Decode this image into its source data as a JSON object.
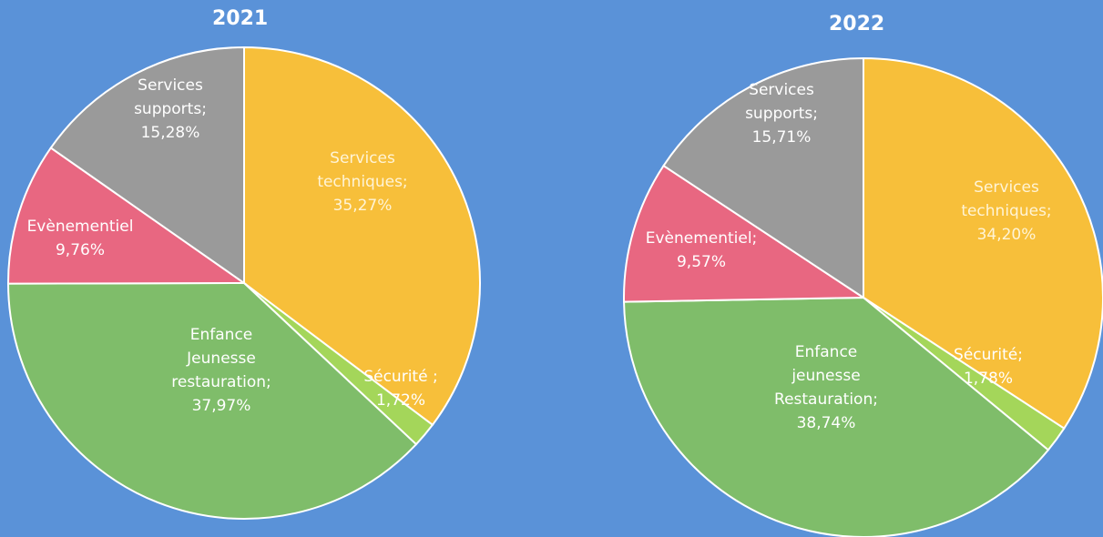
{
  "chart_data": [
    {
      "type": "pie",
      "title": "2021",
      "slices": [
        {
          "label_lines": [
            "Services",
            "techniques;",
            "35,27%"
          ],
          "value": 35.27,
          "color": "#f7bf3a",
          "text_color": "#fff4d6"
        },
        {
          "label_lines": [
            "Sécurité ;",
            "1,72%"
          ],
          "value": 1.72,
          "color": "#a4d65a",
          "text_color": "#ffffff"
        },
        {
          "label_lines": [
            "Enfance",
            "Jeunesse",
            "restauration;",
            "37,97%"
          ],
          "value": 37.97,
          "color": "#7fbd6a",
          "text_color": "#ffffff"
        },
        {
          "label_lines": [
            "Evènementiel",
            "9,76%"
          ],
          "value": 9.76,
          "color": "#e86781",
          "text_color": "#ffffff"
        },
        {
          "label_lines": [
            "Services",
            "supports;",
            "15,28%"
          ],
          "value": 15.28,
          "color": "#9a9a9a",
          "text_color": "#ffffff"
        }
      ]
    },
    {
      "type": "pie",
      "title": "2022",
      "slices": [
        {
          "label_lines": [
            "Services",
            "techniques;",
            "34,20%"
          ],
          "value": 34.2,
          "color": "#f7bf3a",
          "text_color": "#fff4d6"
        },
        {
          "label_lines": [
            "Sécurité;",
            "1,78%"
          ],
          "value": 1.78,
          "color": "#a4d65a",
          "text_color": "#ffffff"
        },
        {
          "label_lines": [
            "Enfance",
            "jeunesse",
            "Restauration;",
            "38,74%"
          ],
          "value": 38.74,
          "color": "#7fbd6a",
          "text_color": "#ffffff"
        },
        {
          "label_lines": [
            "Evènementiel;",
            "9,57%"
          ],
          "value": 9.57,
          "color": "#e86781",
          "text_color": "#ffffff"
        },
        {
          "label_lines": [
            "Services",
            "supports;",
            "15,71%"
          ],
          "value": 15.71,
          "color": "#9a9a9a",
          "text_color": "#ffffff"
        }
      ]
    }
  ]
}
